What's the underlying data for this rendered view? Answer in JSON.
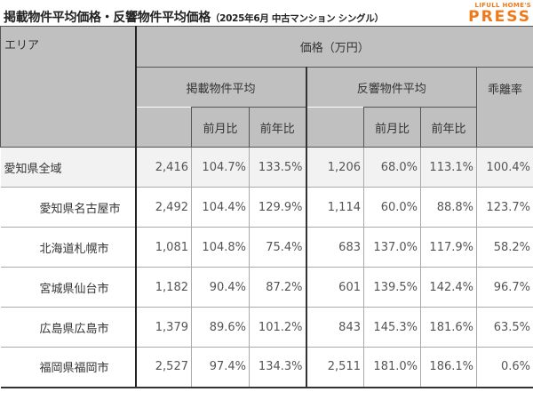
{
  "title": {
    "main": "掲載物件平均価格・反響物件平均価格",
    "sub": "（2025年6月 中古マンション シングル）"
  },
  "logo": {
    "line1": "LIFULL HOME'S",
    "line2": "PRESS",
    "color": "#f07a1a"
  },
  "table": {
    "headers": {
      "area": "エリア",
      "price": "価格（万円）",
      "listed_avg": "掲載物件平均",
      "response_avg": "反響物件平均",
      "gap_rate": "乖離率",
      "mom": "前月比",
      "yoy": "前年比"
    },
    "rows": [
      {
        "area": "愛知県全域",
        "listed": "2,416",
        "listed_mom": "104.7%",
        "listed_yoy": "133.5%",
        "resp": "1,206",
        "resp_mom": "68.0%",
        "resp_yoy": "113.1%",
        "gap": "100.4%"
      },
      {
        "area": "愛知県名古屋市",
        "listed": "2,492",
        "listed_mom": "104.4%",
        "listed_yoy": "129.9%",
        "resp": "1,114",
        "resp_mom": "60.0%",
        "resp_yoy": "88.8%",
        "gap": "123.7%"
      },
      {
        "area": "北海道札幌市",
        "listed": "1,081",
        "listed_mom": "104.8%",
        "listed_yoy": "75.4%",
        "resp": "683",
        "resp_mom": "137.0%",
        "resp_yoy": "117.9%",
        "gap": "58.2%"
      },
      {
        "area": "宮城県仙台市",
        "listed": "1,182",
        "listed_mom": "90.4%",
        "listed_yoy": "87.2%",
        "resp": "601",
        "resp_mom": "139.5%",
        "resp_yoy": "142.4%",
        "gap": "96.7%"
      },
      {
        "area": "広島県広島市",
        "listed": "1,379",
        "listed_mom": "89.6%",
        "listed_yoy": "101.2%",
        "resp": "843",
        "resp_mom": "145.3%",
        "resp_yoy": "181.6%",
        "gap": "63.5%"
      },
      {
        "area": "福岡県福岡市",
        "listed": "2,527",
        "listed_mom": "97.4%",
        "listed_yoy": "134.3%",
        "resp": "2,511",
        "resp_mom": "181.0%",
        "resp_yoy": "186.1%",
        "gap": "0.6%"
      }
    ]
  }
}
